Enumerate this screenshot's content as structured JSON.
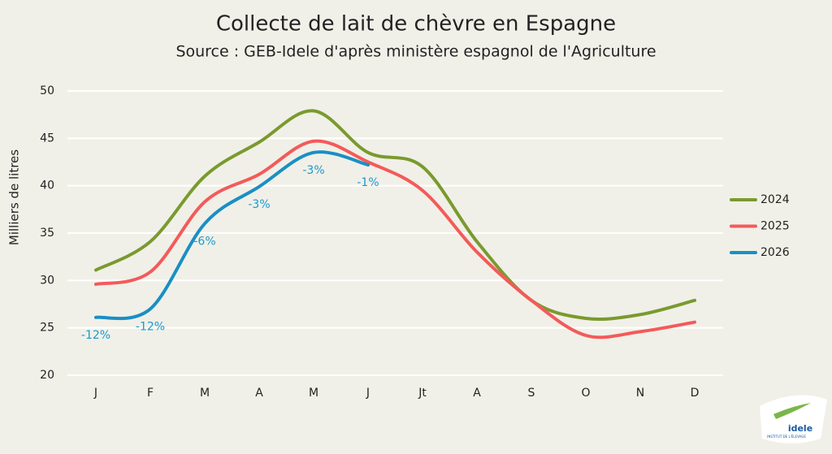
{
  "chart_data": {
    "type": "line",
    "title": "Collecte de lait de chèvre en Espagne",
    "subtitle": "Source : GEB-Idele d'après ministère espagnol de l'Agriculture",
    "y_label": "Milliers de litres",
    "categories": [
      "J",
      "F",
      "M",
      "A",
      "M",
      "J",
      "Jt",
      "A",
      "S",
      "O",
      "N",
      "D"
    ],
    "series": [
      {
        "name": "2024",
        "color": "#7a9a2e",
        "values": [
          31.1,
          34.1,
          41,
          44.6,
          47.9,
          43.5,
          42,
          34.1,
          27.9,
          26,
          26.4,
          27.9
        ]
      },
      {
        "name": "2025",
        "color": "#f45a5a",
        "values": [
          29.6,
          30.9,
          38.3,
          41.2,
          44.7,
          42.5,
          39.5,
          33,
          27.9,
          24.2,
          24.6,
          25.6
        ]
      },
      {
        "name": "2026",
        "color": "#1a8fc4",
        "values": [
          26.1,
          27,
          36,
          39.9,
          43.5,
          42.2,
          null,
          null,
          null,
          null,
          null,
          null
        ],
        "annotations": [
          "-12%",
          "-12%",
          "-6%",
          "-3%",
          "-3%",
          "-1%",
          null,
          null,
          null,
          null,
          null,
          null
        ],
        "annotation_color": "#1a9ad0"
      }
    ],
    "ylim": [
      20,
      50
    ],
    "yticks": [
      20,
      25,
      30,
      35,
      40,
      45,
      50
    ],
    "grid": true,
    "legend": "right",
    "logo": {
      "name": "idele",
      "caption": "INSTITUT DE L'ÉLEVAGE"
    }
  }
}
